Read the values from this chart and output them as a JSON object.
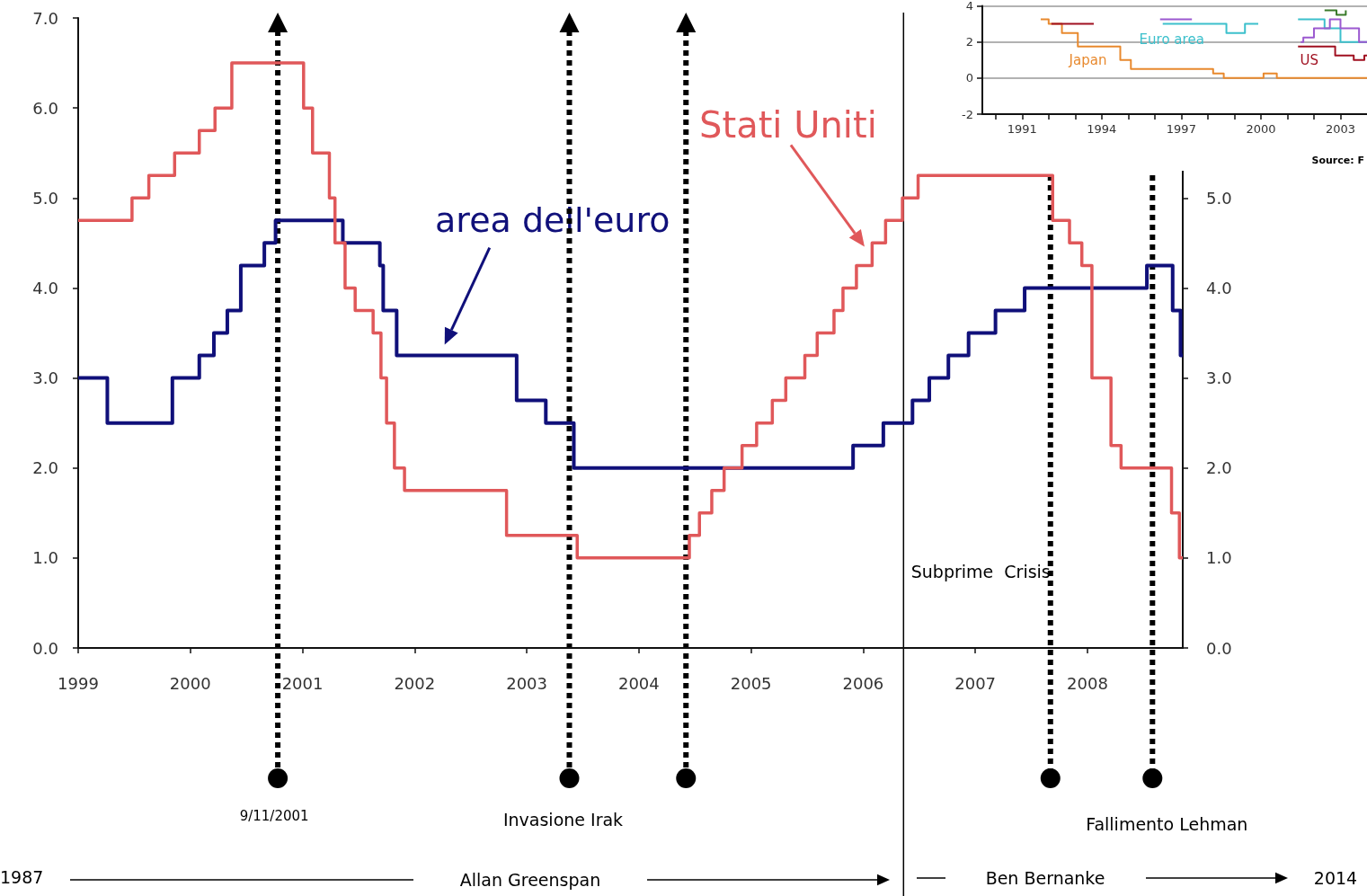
{
  "chart_data": [
    {
      "type": "step",
      "xlim": [
        1999,
        2008.85
      ],
      "xticks": [
        1999,
        2000,
        2001,
        2002,
        2003,
        2004,
        2005,
        2006,
        2007,
        2008
      ],
      "ylim": [
        0,
        7
      ],
      "yticks": [
        {
          "value": 0,
          "label": "0.0"
        },
        {
          "value": 1,
          "label": "1.0"
        },
        {
          "value": 2,
          "label": "2.0"
        },
        {
          "value": 3,
          "label": "3.0"
        },
        {
          "value": 4,
          "label": "4.0"
        },
        {
          "value": 5,
          "label": "5.0"
        },
        {
          "value": 6,
          "label": "6.0"
        },
        {
          "value": 7,
          "label": "7.0"
        }
      ],
      "y2lim": [
        0,
        7
      ],
      "y2ticks": [
        {
          "value": 0,
          "label": "0.0"
        },
        {
          "value": 1,
          "label": "1.0"
        },
        {
          "value": 2,
          "label": "2.0"
        },
        {
          "value": 3,
          "label": "3.0"
        },
        {
          "value": 4,
          "label": "4.0"
        },
        {
          "value": 5,
          "label": "5.0"
        }
      ],
      "grid": false,
      "series": [
        {
          "name": "area dell'euro",
          "color": "#10107a",
          "x": [
            1999.0,
            1999.26,
            1999.84,
            2000.08,
            2000.21,
            2000.33,
            2000.45,
            2000.66,
            2000.76,
            2001.36,
            2001.69,
            2001.72,
            2001.84,
            2002.91,
            2003.17,
            2003.42,
            2005.91,
            2006.18,
            2006.44,
            2006.59,
            2006.76,
            2006.94,
            2007.18,
            2007.44,
            2008.53,
            2008.76,
            2008.83,
            2008.85
          ],
          "values": [
            3.0,
            2.5,
            3.0,
            3.25,
            3.5,
            3.75,
            4.25,
            4.5,
            4.75,
            4.5,
            4.25,
            3.75,
            3.25,
            2.75,
            2.5,
            2.0,
            2.25,
            2.5,
            2.75,
            3.0,
            3.25,
            3.5,
            3.75,
            4.0,
            4.25,
            3.75,
            3.25,
            3.25
          ]
        },
        {
          "name": "Stati Uniti",
          "color": "#e0585a",
          "x": [
            1999.0,
            1999.48,
            1999.63,
            1999.86,
            2000.08,
            2000.22,
            2000.37,
            2001.01,
            2001.09,
            2001.24,
            2001.29,
            2001.38,
            2001.47,
            2001.63,
            2001.7,
            2001.75,
            2001.82,
            2001.91,
            2002.82,
            2003.45,
            2004.45,
            2004.54,
            2004.65,
            2004.76,
            2004.92,
            2005.05,
            2005.19,
            2005.31,
            2005.48,
            2005.59,
            2005.74,
            2005.82,
            2005.94,
            2006.08,
            2006.2,
            2006.35,
            2006.49,
            2007.69,
            2007.84,
            2007.95,
            2008.04,
            2008.21,
            2008.3,
            2008.75,
            2008.82,
            2008.85
          ],
          "values": [
            4.75,
            5.0,
            5.25,
            5.5,
            5.75,
            6.0,
            6.5,
            6.0,
            5.5,
            5.0,
            4.5,
            4.0,
            3.75,
            3.5,
            3.0,
            2.5,
            2.0,
            1.75,
            1.25,
            1.0,
            1.25,
            1.5,
            1.75,
            2.0,
            2.25,
            2.5,
            2.75,
            3.0,
            3.25,
            3.5,
            3.75,
            4.0,
            4.25,
            4.5,
            4.75,
            5.0,
            5.25,
            4.75,
            4.5,
            4.25,
            3.0,
            2.25,
            2.0,
            1.5,
            1.0,
            1.0
          ]
        }
      ],
      "ref_lines": [
        {
          "axis": "x",
          "value": 2000.78,
          "label": "9/11/2001",
          "line_style": "dotted"
        },
        {
          "axis": "x",
          "value": 2003.38,
          "label": "Invasione Irak",
          "line_style": "dotted"
        },
        {
          "axis": "x",
          "value": 2004.42,
          "label": null,
          "line_style": "dotted"
        },
        {
          "axis": "x",
          "value": 2007.67,
          "label": "Subprime  Crisis",
          "line_style": "dotted"
        },
        {
          "axis": "x",
          "value": 2008.58,
          "label": "Fallimento Lehman",
          "line_style": "dotted"
        },
        {
          "axis": "x",
          "value": 2006.36,
          "label": null,
          "line_style": "solid"
        }
      ],
      "annotations": [
        "1987",
        "Allan Greenspan",
        "Ben Bernanke",
        "2014"
      ]
    },
    {
      "type": "step",
      "xlim": [
        1989.5,
        2004
      ],
      "xticks": [
        {
          "value": 1990,
          "label": null
        },
        1991,
        {
          "value": 1992,
          "label": null
        },
        {
          "value": 1993,
          "label": null
        },
        1994,
        {
          "value": 1995,
          "label": null
        },
        {
          "value": 1996,
          "label": null
        },
        1997,
        {
          "value": 1998,
          "label": null
        },
        {
          "value": 1999,
          "label": null
        },
        2000,
        {
          "value": 2001,
          "label": null
        },
        {
          "value": 2002,
          "label": null
        },
        2003
      ],
      "ylim": [
        -2,
        4
      ],
      "yticks": [
        -2,
        0,
        2,
        4
      ],
      "grid": "y",
      "series": [
        {
          "name": "Japan",
          "color": "#e8892e",
          "x": [
            1991.7,
            1992.0,
            1992.5,
            1993.1,
            1994.7,
            1995.1,
            1998.2,
            1998.6,
            2000.1,
            2000.6,
            2004.0
          ],
          "values": [
            3.25,
            3.0,
            2.5,
            1.75,
            1.0,
            0.5,
            0.25,
            0,
            0.25,
            0,
            0
          ]
        },
        {
          "name": "Euro area",
          "color": "#3cc0cc",
          "x": [
            1996.3,
            1998.7,
            1999.4,
            1999.8,
            1999.9,
            2001.4,
            2002.4,
            2003.0,
            2004.0
          ],
          "values": [
            3.0,
            2.5,
            3.0,
            3.0,
            null,
            3.25,
            2.75,
            2.0,
            2.0
          ]
        },
        {
          "name": "US",
          "color": "#a01020",
          "x": [
            1992.1,
            1993.6,
            1993.7,
            2001.4,
            2002.8,
            2003.5,
            2003.9,
            2004.0
          ],
          "values": [
            3.0,
            3.0,
            null,
            1.75,
            1.25,
            1.0,
            1.25,
            1.25
          ]
        },
        {
          "color": "#9b59d0",
          "x": [
            1996.2,
            1997.3,
            1997.4,
            2001.5,
            2001.6,
            2002.0,
            2002.6,
            2003.0,
            2003.7,
            2004.0
          ],
          "values": [
            3.25,
            3.25,
            null,
            2.0,
            2.25,
            2.75,
            3.25,
            2.75,
            2.0,
            2.0
          ]
        },
        {
          "color": "#3a7a2a",
          "x": [
            2002.4,
            2002.85,
            2003.2
          ],
          "values": [
            3.75,
            3.5,
            3.75
          ]
        }
      ],
      "annotations": [
        "Source: F"
      ]
    }
  ]
}
